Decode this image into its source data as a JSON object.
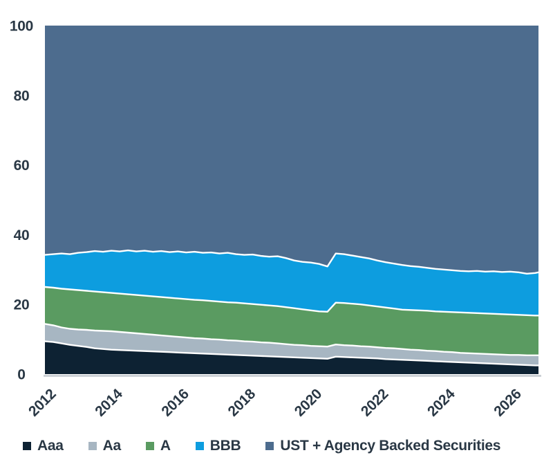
{
  "chart_data": {
    "type": "area",
    "stacked": true,
    "unit": "percent",
    "title": "",
    "xlabel": "",
    "ylabel": "",
    "xlim": [
      2011.75,
      2026.6
    ],
    "ylim": [
      0,
      100
    ],
    "grid": false,
    "legend_position": "bottom",
    "boundary_stroke_color": "#FFFFFF",
    "y_ticks": [
      0,
      20,
      40,
      60,
      80,
      100
    ],
    "x_ticks": [
      2012,
      2014,
      2016,
      2018,
      2020,
      2022,
      2024,
      2026
    ],
    "x": [
      2011.75,
      2012.0,
      2012.25,
      2012.5,
      2012.75,
      2013.0,
      2013.25,
      2013.5,
      2013.75,
      2014.0,
      2014.25,
      2014.5,
      2014.75,
      2015.0,
      2015.25,
      2015.5,
      2015.75,
      2016.0,
      2016.25,
      2016.5,
      2016.75,
      2017.0,
      2017.25,
      2017.5,
      2017.75,
      2018.0,
      2018.25,
      2018.5,
      2018.75,
      2019.0,
      2019.25,
      2019.5,
      2019.75,
      2020.0,
      2020.25,
      2020.5,
      2020.75,
      2021.0,
      2021.25,
      2021.5,
      2021.75,
      2022.0,
      2022.25,
      2022.5,
      2022.75,
      2023.0,
      2023.25,
      2023.5,
      2023.75,
      2024.0,
      2024.25,
      2024.5,
      2024.75,
      2025.0,
      2025.25,
      2025.5,
      2025.75,
      2026.0,
      2026.25,
      2026.5,
      2026.6
    ],
    "series": [
      {
        "name": "Aaa",
        "color": "#0D2233",
        "values": [
          9.4,
          9.2,
          8.8,
          8.4,
          8.1,
          7.8,
          7.4,
          7.2,
          7.0,
          6.9,
          6.8,
          6.7,
          6.6,
          6.5,
          6.4,
          6.3,
          6.2,
          6.1,
          6.0,
          5.9,
          5.8,
          5.7,
          5.6,
          5.5,
          5.4,
          5.3,
          5.2,
          5.1,
          5.0,
          4.9,
          4.8,
          4.7,
          4.6,
          4.5,
          4.4,
          5.0,
          4.9,
          4.8,
          4.7,
          4.6,
          4.5,
          4.3,
          4.2,
          4.1,
          4.0,
          3.9,
          3.8,
          3.7,
          3.6,
          3.5,
          3.4,
          3.3,
          3.2,
          3.1,
          3.0,
          2.9,
          2.8,
          2.7,
          2.6,
          2.5,
          2.5
        ]
      },
      {
        "name": "Aa",
        "color": "#A7B6C2",
        "values": [
          5.0,
          4.8,
          4.6,
          4.6,
          4.7,
          4.9,
          5.1,
          5.2,
          5.3,
          5.2,
          5.1,
          5.0,
          4.9,
          4.8,
          4.7,
          4.6,
          4.5,
          4.4,
          4.3,
          4.3,
          4.2,
          4.2,
          4.1,
          4.1,
          4.0,
          4.0,
          3.9,
          3.9,
          3.8,
          3.7,
          3.6,
          3.6,
          3.5,
          3.5,
          3.5,
          3.5,
          3.4,
          3.4,
          3.3,
          3.3,
          3.2,
          3.2,
          3.2,
          3.1,
          3.0,
          3.0,
          2.9,
          2.9,
          2.8,
          2.8,
          2.7,
          2.7,
          2.7,
          2.7,
          2.7,
          2.7,
          2.7,
          2.8,
          2.8,
          2.9,
          2.9
        ]
      },
      {
        "name": "A",
        "color": "#5A9B61",
        "values": [
          10.6,
          10.8,
          11.1,
          11.3,
          11.3,
          11.2,
          11.2,
          11.1,
          11.0,
          11.0,
          11.0,
          11.0,
          11.0,
          11.0,
          11.0,
          11.0,
          11.0,
          11.0,
          11.0,
          11.0,
          11.0,
          10.9,
          10.9,
          10.9,
          10.9,
          10.8,
          10.8,
          10.7,
          10.7,
          10.6,
          10.5,
          10.3,
          10.2,
          10.0,
          10.0,
          12.0,
          12.1,
          12.0,
          12.0,
          11.8,
          11.7,
          11.6,
          11.4,
          11.3,
          11.4,
          11.4,
          11.5,
          11.4,
          11.5,
          11.5,
          11.6,
          11.6,
          11.6,
          11.6,
          11.6,
          11.6,
          11.6,
          11.5,
          11.5,
          11.4,
          11.4
        ]
      },
      {
        "name": "BBB",
        "color": "#0D9DDF",
        "values": [
          9.2,
          9.6,
          10.1,
          10.1,
          10.7,
          11.1,
          11.6,
          11.6,
          12.1,
          12.1,
          12.6,
          12.5,
          12.9,
          12.8,
          13.2,
          13.1,
          13.5,
          13.4,
          13.8,
          13.6,
          13.9,
          13.8,
          14.2,
          13.9,
          13.9,
          14.2,
          14.0,
          14.0,
          14.3,
          14.1,
          13.7,
          13.6,
          13.7,
          13.6,
          13.0,
          14.1,
          14.0,
          13.8,
          13.6,
          13.5,
          13.2,
          13.0,
          12.9,
          12.8,
          12.6,
          12.5,
          12.3,
          12.2,
          12.1,
          12.0,
          11.9,
          11.9,
          12.1,
          12.0,
          12.2,
          12.1,
          12.3,
          12.2,
          11.9,
          12.2,
          12.4
        ]
      },
      {
        "name": "UST + Agency Backed Securities",
        "color": "#4D6C8E",
        "values": [
          65.8,
          65.6,
          65.4,
          65.6,
          65.2,
          65.0,
          64.7,
          64.9,
          64.6,
          64.8,
          64.5,
          64.8,
          64.6,
          64.9,
          64.7,
          65.0,
          64.8,
          65.1,
          64.9,
          65.2,
          65.1,
          65.4,
          65.2,
          65.6,
          65.8,
          65.7,
          66.1,
          66.3,
          66.2,
          66.7,
          67.4,
          67.8,
          68.0,
          68.4,
          69.1,
          65.4,
          65.6,
          66.0,
          66.4,
          66.8,
          67.4,
          67.9,
          68.3,
          68.7,
          69.0,
          69.2,
          69.5,
          69.8,
          70.0,
          70.2,
          70.4,
          70.5,
          70.4,
          70.6,
          70.5,
          70.7,
          70.6,
          70.8,
          71.2,
          71.0,
          70.8
        ]
      }
    ]
  },
  "colors": {
    "background": "#FFFFFF",
    "text": "#2A3845",
    "axis_line": "#C8CED3",
    "series_boundary": "#FFFFFF"
  }
}
